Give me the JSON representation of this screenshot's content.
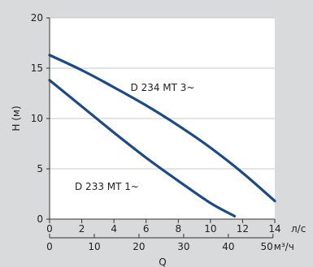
{
  "chart_data": {
    "type": "line",
    "ylabel": "H (м)",
    "xlabel": "Q",
    "x_unit_top": "л/с",
    "x_unit_bottom": "м³/ч",
    "xlim": [
      0,
      14
    ],
    "ylim": [
      0,
      20
    ],
    "x_ticks_top": [
      0,
      2,
      4,
      6,
      8,
      10,
      12,
      14
    ],
    "x_ticks_bottom": [
      0,
      10,
      20,
      30,
      40,
      50
    ],
    "y_ticks": [
      0,
      5,
      10,
      15,
      20
    ],
    "grid": true,
    "colors": {
      "background": "#d9dadb",
      "plot_area": "#ffffff",
      "line": "#1b4a86",
      "grid": "#c8c9ca"
    },
    "series": [
      {
        "name": "D 234 MT 3~",
        "x": [
          0,
          2,
          4,
          6,
          8,
          10,
          12,
          14
        ],
        "y": [
          16.3,
          14.8,
          13.1,
          11.3,
          9.3,
          7.1,
          4.6,
          1.8
        ]
      },
      {
        "name": "D 233 MT 1~",
        "x": [
          0,
          2,
          4,
          6,
          8,
          10,
          11.5
        ],
        "y": [
          13.8,
          11.2,
          8.6,
          6.1,
          3.8,
          1.6,
          0.3
        ]
      }
    ]
  }
}
